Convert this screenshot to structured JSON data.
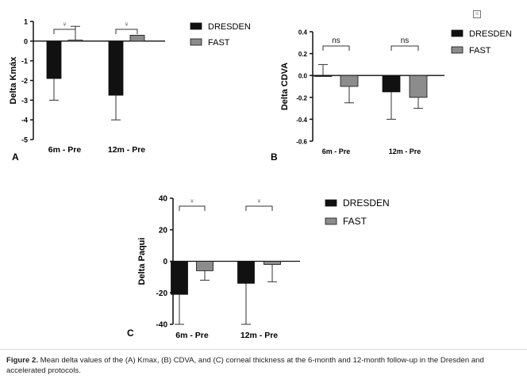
{
  "chart_data": [
    {
      "type": "bar",
      "panel": "A",
      "categories": [
        "6m - Pre",
        "12m - Pre"
      ],
      "series": [
        {
          "name": "DRESDEN",
          "values": [
            -1.9,
            -2.75
          ],
          "error": [
            1.1,
            1.25
          ],
          "color": "#111111"
        },
        {
          "name": "FAST",
          "values": [
            0.05,
            0.3
          ],
          "error": [
            0.7,
            0.0
          ],
          "color": "#8c8c8c"
        }
      ],
      "ylabel": "Delta Kmáx",
      "ylim": [
        -5,
        1
      ],
      "yticks": [
        1,
        0,
        -1,
        -2,
        -3,
        -4,
        -5
      ],
      "significance": [
        "¥",
        "¥"
      ]
    },
    {
      "type": "bar",
      "panel": "B",
      "categories": [
        "6m - Pre",
        "12m - Pre"
      ],
      "series": [
        {
          "name": "DRESDEN",
          "values": [
            0.0,
            -0.15
          ],
          "error": [
            0.1,
            0.25
          ],
          "color": "#111111"
        },
        {
          "name": "FAST",
          "values": [
            -0.1,
            -0.2
          ],
          "error": [
            0.15,
            0.1
          ],
          "color": "#8c8c8c"
        }
      ],
      "ylabel": "Delta CDVA",
      "ylim": [
        -0.6,
        0.4
      ],
      "yticks": [
        "0.4",
        "0.2",
        "0.0",
        "-0.2",
        "-0.4",
        "-0.6"
      ],
      "significance": [
        "ns",
        "ns"
      ]
    },
    {
      "type": "bar",
      "panel": "C",
      "categories": [
        "6m - Pre",
        "12m - Pre"
      ],
      "series": [
        {
          "name": "DRESDEN",
          "values": [
            -21,
            -14
          ],
          "error": [
            19,
            26
          ],
          "color": "#111111"
        },
        {
          "name": "FAST",
          "values": [
            -6,
            -2
          ],
          "error": [
            6,
            11
          ],
          "color": "#8c8c8c"
        }
      ],
      "ylabel": "Delta Paqui",
      "ylim": [
        -40,
        40
      ],
      "yticks": [
        40,
        20,
        0,
        -20,
        -40
      ],
      "significance": [
        "¥",
        "¥"
      ]
    }
  ],
  "caption": {
    "label": "Figure 2.",
    "text": " Mean delta values of the (A) Kmax, (B) CDVA, and (C) corneal thickness at the 6-month and 12-month follow-up in the Dresden and accelerated protocols."
  },
  "corner_icon": "n"
}
